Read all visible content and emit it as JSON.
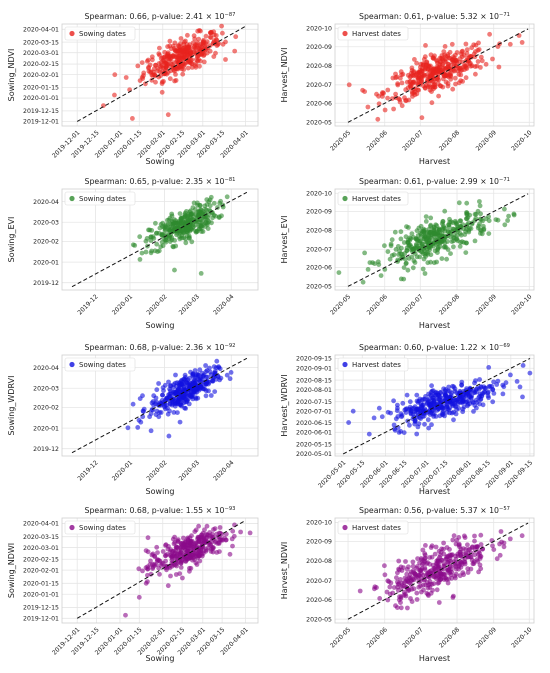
{
  "chart_data": [
    {
      "type": "scatter",
      "title_prefix": "Spearman: 0.66, p-value: 2.41 × 10",
      "title_exp": "−87",
      "xlabel": "Sowing",
      "ylabel": "Sowing_NDVI",
      "legend": "Sowing dates",
      "legend_position": "top-left",
      "color": "#e8231e",
      "grid": true,
      "xlim": [
        "2019-11-20",
        "2020-04-10"
      ],
      "ylim": [
        "2019-11-25",
        "2020-04-08"
      ],
      "x_ticks": [
        "2019-12-01",
        "2019-12-15",
        "2020-01-01",
        "2020-01-15",
        "2020-02-01",
        "2020-02-15",
        "2020-03-01",
        "2020-03-15",
        "2020-04-01"
      ],
      "y_ticks": [
        "2019-12-01",
        "2019-12-15",
        "2020-01-01",
        "2020-01-15",
        "2020-02-01",
        "2020-02-15",
        "2020-03-01",
        "2020-03-15",
        "2020-04-01"
      ],
      "cluster": {
        "x_center": "2020-02-15",
        "x_spread_days": 14,
        "y_center": "2020-02-25",
        "y_spread_days": 15,
        "n_points": 320
      },
      "outliers": [
        [
          "2019-12-28",
          "2020-01-05"
        ],
        [
          "2020-01-08",
          "2020-01-12"
        ],
        [
          "2020-02-05",
          "2019-12-10"
        ],
        [
          "2020-01-10",
          "2019-12-05"
        ],
        [
          "2019-12-20",
          "2019-12-22"
        ]
      ],
      "fit_line": [
        [
          "2019-12-01",
          "2019-12-01"
        ],
        [
          "2020-04-01",
          "2020-04-05"
        ]
      ]
    },
    {
      "type": "scatter",
      "title_prefix": "Spearman: 0.61, p-value: 5.32 × 10",
      "title_exp": "−71",
      "xlabel": "Harvest",
      "ylabel": "Harvest_NDVI",
      "legend": "Harvest dates",
      "legend_position": "top-left",
      "color": "#e8231e",
      "grid": true,
      "xlim": [
        "2020-04-20",
        "2020-10-05"
      ],
      "ylim": [
        "2020-04-25",
        "2020-10-08"
      ],
      "x_ticks": [
        "2020-05",
        "2020-06",
        "2020-07",
        "2020-08",
        "2020-09",
        "2020-10"
      ],
      "y_ticks": [
        "2020-05",
        "2020-06",
        "2020-07",
        "2020-08",
        "2020-09",
        "2020-10"
      ],
      "cluster": {
        "x_center": "2020-07-15",
        "x_spread_days": 22,
        "y_center": "2020-07-20",
        "y_spread_days": 22,
        "n_points": 360
      },
      "outliers": [
        [
          "2020-05-02",
          "2020-07-01"
        ],
        [
          "2020-09-15",
          "2020-09-05"
        ],
        [
          "2020-09-25",
          "2020-09-08"
        ],
        [
          "2020-05-15",
          "2020-06-20"
        ]
      ],
      "fit_line": [
        [
          "2020-05-01",
          "2020-05-01"
        ],
        [
          "2020-09-30",
          "2020-09-30"
        ]
      ]
    },
    {
      "type": "scatter",
      "title_prefix": "Spearman: 0.65, p-value: 2.35 × 10",
      "title_exp": "−81",
      "xlabel": "Sowing",
      "ylabel": "Sowing_EVI",
      "legend": "Sowing dates",
      "legend_position": "top-left",
      "color": "#2e8b2e",
      "grid": true,
      "xlim": [
        "2019-11-01",
        "2020-04-25"
      ],
      "ylim": [
        "2019-11-20",
        "2020-04-20"
      ],
      "x_ticks": [
        "2019-12",
        "2020-01",
        "2020-02",
        "2020-03",
        "2020-04"
      ],
      "y_ticks": [
        "2019-12",
        "2020-01",
        "2020-02",
        "2020-03",
        "2020-04"
      ],
      "cluster": {
        "x_center": "2020-02-18",
        "x_spread_days": 15,
        "y_center": "2020-02-25",
        "y_spread_days": 16,
        "n_points": 320
      },
      "outliers": [
        [
          "2020-01-10",
          "2020-01-05"
        ],
        [
          "2020-02-10",
          "2019-12-20"
        ],
        [
          "2020-03-05",
          "2019-12-15"
        ],
        [
          "2020-01-20",
          "2020-01-15"
        ]
      ],
      "fit_line": [
        [
          "2019-11-10",
          "2019-11-25"
        ],
        [
          "2020-04-15",
          "2020-04-15"
        ]
      ]
    },
    {
      "type": "scatter",
      "title_prefix": "Spearman: 0.61, p-value: 2.99 × 10",
      "title_exp": "−71",
      "xlabel": "Harvest",
      "ylabel": "Harvest_EVI",
      "legend": "Harvest dates",
      "legend_position": "top-left",
      "color": "#2e8b2e",
      "grid": true,
      "xlim": [
        "2020-04-20",
        "2020-10-05"
      ],
      "ylim": [
        "2020-04-25",
        "2020-10-08"
      ],
      "x_ticks": [
        "2020-05",
        "2020-06",
        "2020-07",
        "2020-08",
        "2020-09",
        "2020-10"
      ],
      "y_ticks": [
        "2020-05",
        "2020-06",
        "2020-07",
        "2020-08",
        "2020-09",
        "2020-10"
      ],
      "cluster": {
        "x_center": "2020-07-15",
        "x_spread_days": 22,
        "y_center": "2020-07-18",
        "y_spread_days": 22,
        "n_points": 360
      },
      "outliers": [
        [
          "2020-09-10",
          "2020-09-05"
        ],
        [
          "2020-09-18",
          "2020-08-28"
        ],
        [
          "2020-05-15",
          "2020-06-25"
        ]
      ],
      "fit_line": [
        [
          "2020-05-01",
          "2020-05-01"
        ],
        [
          "2020-09-30",
          "2020-09-30"
        ]
      ]
    },
    {
      "type": "scatter",
      "title_prefix": "Spearman: 0.68, p-value: 2.36 × 10",
      "title_exp": "−92",
      "xlabel": "Sowing",
      "ylabel": "Sowing_WDRVI",
      "legend": "Sowing dates",
      "legend_position": "top-left",
      "color": "#1010e0",
      "grid": true,
      "xlim": [
        "2019-11-01",
        "2020-04-25"
      ],
      "ylim": [
        "2019-11-20",
        "2020-04-20"
      ],
      "x_ticks": [
        "2019-12",
        "2020-01",
        "2020-02",
        "2020-03",
        "2020-04"
      ],
      "y_ticks": [
        "2019-12",
        "2020-01",
        "2020-02",
        "2020-03",
        "2020-04"
      ],
      "cluster": {
        "x_center": "2020-02-18",
        "x_spread_days": 15,
        "y_center": "2020-02-25",
        "y_spread_days": 16,
        "n_points": 320
      },
      "outliers": [
        [
          "2020-01-08",
          "2020-01-02"
        ],
        [
          "2020-01-20",
          "2019-12-28"
        ],
        [
          "2020-02-05",
          "2019-12-20"
        ],
        [
          "2020-02-15",
          "2020-01-10"
        ]
      ],
      "fit_line": [
        [
          "2019-11-10",
          "2019-11-25"
        ],
        [
          "2020-04-15",
          "2020-04-15"
        ]
      ]
    },
    {
      "type": "scatter",
      "title_prefix": "Spearman: 0.60, p-value: 1.22 × 10",
      "title_exp": "−69",
      "xlabel": "Harvest",
      "ylabel": "Harvest_WDRVI",
      "legend": "Harvest dates",
      "legend_position": "top-left",
      "color": "#1010e0",
      "grid": true,
      "xlim": [
        "2020-04-25",
        "2020-09-18"
      ],
      "ylim": [
        "2020-04-28",
        "2020-09-20"
      ],
      "x_ticks": [
        "2020-05-01",
        "2020-05-15",
        "2020-06-01",
        "2020-06-15",
        "2020-07-01",
        "2020-07-15",
        "2020-08-01",
        "2020-08-15",
        "2020-09-01",
        "2020-09-15"
      ],
      "y_ticks": [
        "2020-05-01",
        "2020-05-15",
        "2020-06-01",
        "2020-06-15",
        "2020-07-01",
        "2020-07-15",
        "2020-08-01",
        "2020-08-15",
        "2020-09-01",
        "2020-09-15"
      ],
      "cluster": {
        "x_center": "2020-07-15",
        "x_spread_days": 20,
        "y_center": "2020-07-15",
        "y_spread_days": 16,
        "n_points": 360
      },
      "outliers": [
        [
          "2020-09-10",
          "2020-09-05"
        ],
        [
          "2020-09-15",
          "2020-08-25"
        ],
        [
          "2020-05-05",
          "2020-06-15"
        ]
      ],
      "fit_line": [
        [
          "2020-05-01",
          "2020-05-01"
        ],
        [
          "2020-09-15",
          "2020-09-15"
        ]
      ]
    },
    {
      "type": "scatter",
      "title_prefix": "Spearman: 0.68, p-value: 1.55 × 10",
      "title_exp": "−93",
      "xlabel": "Sowing",
      "ylabel": "Sowing_NDWI",
      "legend": "Sowing dates",
      "legend_position": "top-left",
      "color": "#8b0a8b",
      "grid": true,
      "xlim": [
        "2019-11-20",
        "2020-04-10"
      ],
      "ylim": [
        "2019-11-25",
        "2020-04-08"
      ],
      "x_ticks": [
        "2019-12-01",
        "2019-12-15",
        "2020-01-01",
        "2020-01-15",
        "2020-02-01",
        "2020-02-15",
        "2020-03-01",
        "2020-03-15",
        "2020-04-01"
      ],
      "y_ticks": [
        "2019-12-01",
        "2019-12-15",
        "2020-01-01",
        "2020-01-15",
        "2020-02-01",
        "2020-02-15",
        "2020-03-01",
        "2020-03-15",
        "2020-04-01"
      ],
      "cluster": {
        "x_center": "2020-02-18",
        "x_spread_days": 14,
        "y_center": "2020-02-25",
        "y_spread_days": 15,
        "n_points": 320
      },
      "outliers": [
        [
          "2020-01-05",
          "2019-12-05"
        ],
        [
          "2020-01-20",
          "2020-01-15"
        ],
        [
          "2020-02-05",
          "2020-01-12"
        ],
        [
          "2020-01-15",
          "2019-12-28"
        ]
      ],
      "fit_line": [
        [
          "2019-12-01",
          "2019-12-01"
        ],
        [
          "2020-04-01",
          "2020-04-05"
        ]
      ]
    },
    {
      "type": "scatter",
      "title_prefix": "Spearman: 0.56, p-value: 5.37 × 10",
      "title_exp": "−57",
      "xlabel": "Harvest",
      "ylabel": "Harvest_NDWI",
      "legend": "Harvest dates",
      "legend_position": "top-left",
      "color": "#8b0a8b",
      "grid": true,
      "xlim": [
        "2020-04-20",
        "2020-10-05"
      ],
      "ylim": [
        "2020-04-25",
        "2020-10-08"
      ],
      "x_ticks": [
        "2020-05",
        "2020-06",
        "2020-07",
        "2020-08",
        "2020-09",
        "2020-10"
      ],
      "y_ticks": [
        "2020-05",
        "2020-06",
        "2020-07",
        "2020-08",
        "2020-09",
        "2020-10"
      ],
      "cluster": {
        "x_center": "2020-07-15",
        "x_spread_days": 22,
        "y_center": "2020-07-20",
        "y_spread_days": 25,
        "n_points": 360
      },
      "outliers": [
        [
          "2020-09-15",
          "2020-09-05"
        ],
        [
          "2020-05-25",
          "2020-06-20"
        ],
        [
          "2020-09-25",
          "2020-09-10"
        ]
      ],
      "fit_line": [
        [
          "2020-05-01",
          "2020-05-01"
        ],
        [
          "2020-09-30",
          "2020-09-30"
        ]
      ]
    }
  ]
}
